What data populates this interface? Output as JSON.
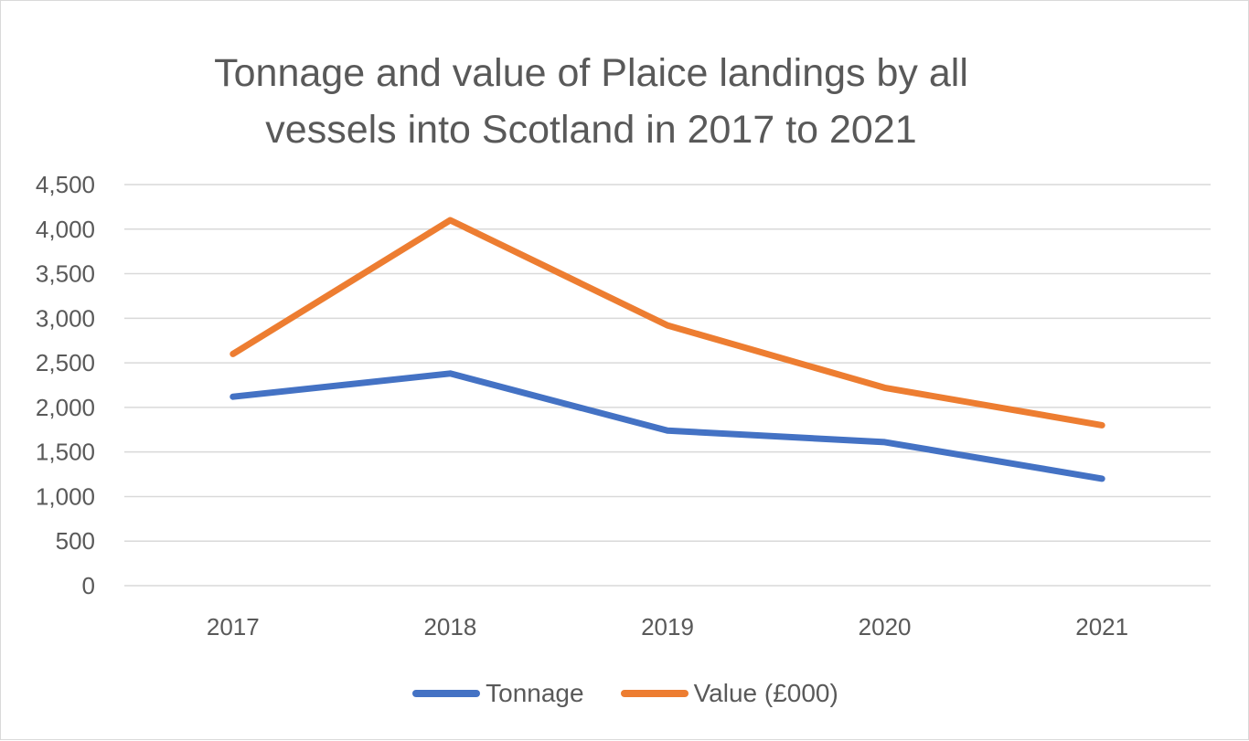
{
  "chart_data": {
    "type": "line",
    "title": "Tonnage and value of Plaice landings by all vessels into Scotland in 2017 to 2021",
    "categories": [
      "2017",
      "2018",
      "2019",
      "2020",
      "2021"
    ],
    "series": [
      {
        "name": "Tonnage",
        "color": "#4472C4",
        "values": [
          2120,
          2380,
          1740,
          1610,
          1200
        ]
      },
      {
        "name": "Value (£000)",
        "color": "#ED7D31",
        "values": [
          2600,
          4100,
          2920,
          2220,
          1800
        ]
      }
    ],
    "ylim": [
      0,
      4500
    ],
    "yticks": [
      0,
      500,
      1000,
      1500,
      2000,
      2500,
      3000,
      3500,
      4000,
      4500
    ],
    "ytick_labels": [
      "0",
      "500",
      "1,000",
      "1,500",
      "2,000",
      "2,500",
      "3,000",
      "3,500",
      "4,000",
      "4,500"
    ],
    "xlabel": "",
    "ylabel": "",
    "grid": "horizontal",
    "legend": "bottom"
  }
}
